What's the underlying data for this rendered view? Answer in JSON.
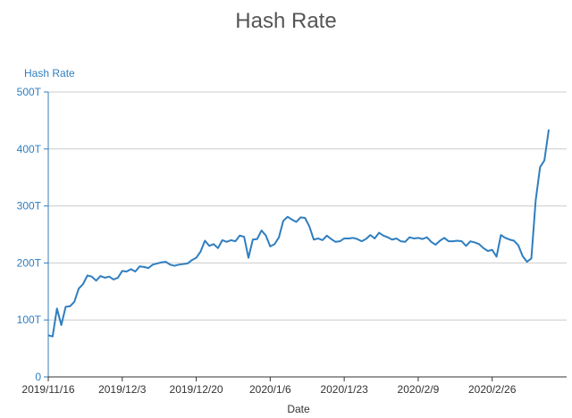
{
  "chart_data": {
    "type": "line",
    "title": "Hash Rate",
    "ylabel": "Hash Rate",
    "xlabel": "Date",
    "ylim": [
      0,
      500
    ],
    "y_ticks": [
      0,
      100,
      200,
      300,
      400,
      500
    ],
    "y_tick_labels": [
      "0",
      "100T",
      "200T",
      "300T",
      "400T",
      "500T"
    ],
    "x_tick_labels": [
      "2019/11/16",
      "2019/12/3",
      "2019/12/20",
      "2020/1/6",
      "2020/1/23",
      "2020/2/9",
      "2020/2/26"
    ],
    "x_tick_step": 17,
    "grid": true,
    "colors": {
      "line": "#2f7ec0",
      "axis": "#2f7ec0",
      "grid": "#cccccc",
      "title": "#555555",
      "label": "#333333"
    },
    "series": [
      {
        "values": [
          73,
          71,
          120,
          91,
          123,
          124,
          132,
          155,
          163,
          178,
          176,
          169,
          177,
          174,
          176,
          171,
          174,
          186,
          185,
          189,
          185,
          194,
          193,
          191,
          197,
          199,
          201,
          202,
          197,
          195,
          197,
          198,
          199,
          205,
          209,
          220,
          239,
          230,
          233,
          226,
          240,
          237,
          240,
          238,
          248,
          246,
          209,
          241,
          242,
          257,
          248,
          229,
          233,
          245,
          274,
          281,
          276,
          272,
          280,
          279,
          264,
          241,
          243,
          240,
          248,
          242,
          237,
          238,
          243,
          243,
          244,
          242,
          238,
          242,
          249,
          243,
          253,
          248,
          245,
          241,
          243,
          238,
          237,
          245,
          243,
          244,
          242,
          245,
          237,
          232,
          239,
          244,
          238,
          238,
          239,
          238,
          230,
          238,
          236,
          233,
          226,
          221,
          223,
          211,
          249,
          244,
          241,
          239,
          231,
          212,
          202,
          208,
          310,
          368,
          380,
          434
        ]
      }
    ]
  }
}
